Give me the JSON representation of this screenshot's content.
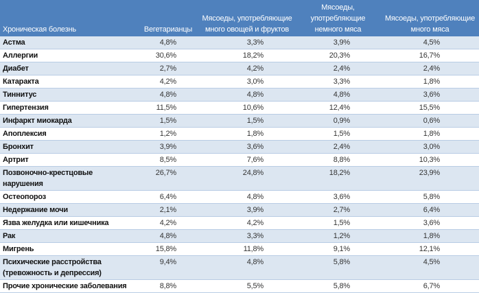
{
  "headers": [
    "Хроническая болезнь",
    "Вегетарианцы",
    "Мясоеды, употребляющие много овощей и фруктов",
    "Мясоеды, употребляющие немного мяса",
    "Мясоеды, употребляющие много мяса"
  ],
  "rows": [
    {
      "disease": "Астма",
      "values": [
        "4,8%",
        "3,3%",
        "3,9%",
        "4,5%"
      ]
    },
    {
      "disease": "Аллергии",
      "values": [
        "30,6%",
        "18,2%",
        "20,3%",
        "16,7%"
      ]
    },
    {
      "disease": "Диабет",
      "values": [
        "2,7%",
        "4,2%",
        "2,4%",
        "2,4%"
      ]
    },
    {
      "disease": "Катаракта",
      "values": [
        "4,2%",
        "3,0%",
        "3,3%",
        "1,8%"
      ]
    },
    {
      "disease": "Тиннитус",
      "values": [
        "4,8%",
        "4,8%",
        "4,8%",
        "3,6%"
      ]
    },
    {
      "disease": "Гипертензия",
      "values": [
        "11,5%",
        "10,6%",
        "12,4%",
        "15,5%"
      ]
    },
    {
      "disease": "Инфаркт миокарда",
      "values": [
        "1,5%",
        "1,5%",
        "0,9%",
        "0,6%"
      ]
    },
    {
      "disease": "Апоплексия",
      "values": [
        "1,2%",
        "1,8%",
        "1,5%",
        "1,8%"
      ]
    },
    {
      "disease": "Бронхит",
      "values": [
        "3,9%",
        "3,6%",
        "2,4%",
        "3,0%"
      ]
    },
    {
      "disease": "Артрит",
      "values": [
        "8,5%",
        "7,6%",
        "8,8%",
        "10,3%"
      ]
    },
    {
      "disease": "Позвоночно-крестцовые нарушения",
      "values": [
        "26,7%",
        "24,8%",
        "18,2%",
        "23,9%"
      ]
    },
    {
      "disease": "Остеопороз",
      "values": [
        "6,4%",
        "4,8%",
        "3,6%",
        "5,8%"
      ]
    },
    {
      "disease": "Недержание мочи",
      "values": [
        "2,1%",
        "3,9%",
        "2,7%",
        "6,4%"
      ]
    },
    {
      "disease": "Язва желудка или кишечника",
      "values": [
        "4,2%",
        "4,2%",
        "1,5%",
        "3,6%"
      ]
    },
    {
      "disease": "Рак",
      "values": [
        "4,8%",
        "3,3%",
        "1,2%",
        "1,8%"
      ]
    },
    {
      "disease": "Мигрень",
      "values": [
        "15,8%",
        "11,8%",
        "9,1%",
        "12,1%"
      ]
    },
    {
      "disease": "Психические расстройства (тревожность и депрессия)",
      "values": [
        "9,4%",
        "4,8%",
        "5,8%",
        "4,5%"
      ]
    },
    {
      "disease": "Прочие хронические заболевания",
      "values": [
        "8,8%",
        "5,5%",
        "5,8%",
        "6,7%"
      ]
    }
  ]
}
